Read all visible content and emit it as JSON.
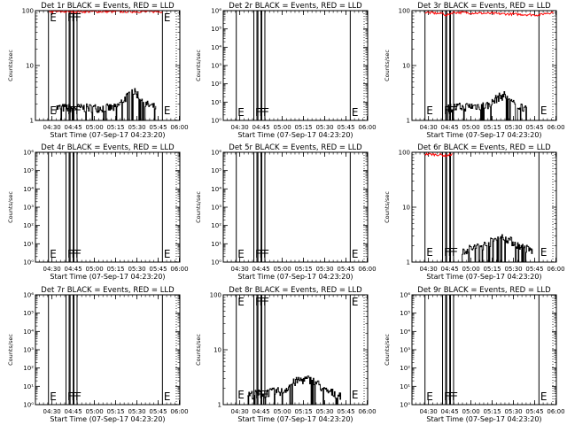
{
  "figure": {
    "xlabel": "Start Time (07-Sep-17 04:23:20)",
    "ylabel": "Counts/sec",
    "x_ticks": [
      "04:30",
      "04:45",
      "05:00",
      "05:15",
      "05:30",
      "05:45",
      "06:00"
    ],
    "colors": {
      "events": "#000000",
      "lld": "#ff0000"
    }
  },
  "chart_data": [
    {
      "type": "line",
      "title": "Det 1r BLACK = Events, RED = LLD",
      "xlabel": "Start Time (07-Sep-17 04:23:20)",
      "ylabel": "Counts/sec",
      "y_scale": "log",
      "ylim": [
        1,
        100
      ],
      "y_ticks": [
        {
          "v": 1,
          "label": "1"
        },
        {
          "v": 10,
          "label": "10"
        },
        {
          "v": 100,
          "label": "100"
        }
      ],
      "markers": [
        {
          "t": 4.2,
          "label": "E"
        },
        {
          "t": 16.6,
          "label": "F"
        },
        {
          "t": 19.5,
          "label": "F"
        },
        {
          "t": 22.2,
          "label": "F"
        },
        {
          "t": 84.7,
          "label": "E"
        }
      ],
      "events_profile": [
        [
          9,
          1.7
        ],
        [
          52,
          1.7
        ],
        [
          55,
          2.1
        ],
        [
          60,
          2.8
        ],
        [
          63,
          3.5
        ],
        [
          67,
          3.0
        ],
        [
          72,
          2.0
        ],
        [
          80,
          1.7
        ]
      ],
      "lld_profile": [
        [
          4.2,
          98
        ],
        [
          84.7,
          98
        ]
      ]
    },
    {
      "type": "line",
      "title": "Det 2r BLACK = Events, RED = LLD",
      "xlabel": "Start Time (07-Sep-17 04:23:20)",
      "ylabel": "Counts/sec",
      "y_scale": "log",
      "ylim": [
        1,
        1000000
      ],
      "y_ticks": [
        {
          "v": 1,
          "label": "10⁰"
        },
        {
          "v": 10,
          "label": "10¹"
        },
        {
          "v": 100,
          "label": "10²"
        },
        {
          "v": 1000,
          "label": "10³"
        },
        {
          "v": 10000,
          "label": "10⁴"
        },
        {
          "v": 100000,
          "label": "10⁵"
        },
        {
          "v": 1000000,
          "label": "10⁶"
        }
      ],
      "markers": [
        {
          "t": 4.2,
          "label": "E"
        },
        {
          "t": 16.6,
          "label": "F"
        },
        {
          "t": 19.5,
          "label": "F"
        },
        {
          "t": 22.2,
          "label": "F"
        },
        {
          "t": 84.7,
          "label": "E"
        }
      ],
      "events_profile": [],
      "lld_profile": []
    },
    {
      "type": "line",
      "title": "Det 3r BLACK = Events, RED = LLD",
      "xlabel": "Start Time (07-Sep-17 04:23:20)",
      "ylabel": "Counts/sec",
      "y_scale": "log",
      "ylim": [
        1,
        100
      ],
      "y_ticks": [
        {
          "v": 1,
          "label": "1"
        },
        {
          "v": 10,
          "label": "10"
        },
        {
          "v": 100,
          "label": "100"
        }
      ],
      "markers": [
        {
          "t": 4.2,
          "label": "E"
        },
        {
          "t": 16.6,
          "label": "F"
        },
        {
          "t": 19.5,
          "label": "F"
        },
        {
          "t": 22.2,
          "label": "F"
        },
        {
          "t": 84.7,
          "label": "E"
        }
      ],
      "events_profile": [
        [
          19,
          1.7
        ],
        [
          50,
          1.9
        ],
        [
          55,
          2.6
        ],
        [
          60,
          2.9
        ],
        [
          64,
          2.5
        ],
        [
          67,
          1.9
        ],
        [
          76,
          1.7
        ]
      ],
      "lld_profile": [
        [
          4.2,
          95
        ],
        [
          15,
          90
        ],
        [
          17,
          92
        ],
        [
          19,
          82
        ],
        [
          24,
          95
        ],
        [
          84.7,
          85
        ],
        [
          90,
          92
        ],
        [
          95,
          95
        ]
      ]
    },
    {
      "type": "line",
      "title": "Det 4r BLACK = Events, RED = LLD",
      "xlabel": "Start Time (07-Sep-17 04:23:20)",
      "ylabel": "Counts/sec",
      "y_scale": "log",
      "ylim": [
        1,
        1000000
      ],
      "y_ticks": [
        {
          "v": 1,
          "label": "10⁰"
        },
        {
          "v": 10,
          "label": "10¹"
        },
        {
          "v": 100,
          "label": "10²"
        },
        {
          "v": 1000,
          "label": "10³"
        },
        {
          "v": 10000,
          "label": "10⁴"
        },
        {
          "v": 100000,
          "label": "10⁵"
        },
        {
          "v": 1000000,
          "label": "10⁶"
        }
      ],
      "markers": [
        {
          "t": 4.2,
          "label": "E"
        },
        {
          "t": 16.6,
          "label": "F"
        },
        {
          "t": 19.5,
          "label": "F"
        },
        {
          "t": 22.2,
          "label": "F"
        },
        {
          "t": 84.7,
          "label": "E"
        }
      ],
      "events_profile": [],
      "lld_profile": []
    },
    {
      "type": "line",
      "title": "Det 5r BLACK = Events, RED = LLD",
      "xlabel": "Start Time (07-Sep-17 04:23:20)",
      "ylabel": "Counts/sec",
      "y_scale": "log",
      "ylim": [
        1,
        1000000
      ],
      "y_ticks": [
        {
          "v": 1,
          "label": "10⁰"
        },
        {
          "v": 10,
          "label": "10¹"
        },
        {
          "v": 100,
          "label": "10²"
        },
        {
          "v": 1000,
          "label": "10³"
        },
        {
          "v": 10000,
          "label": "10⁴"
        },
        {
          "v": 100000,
          "label": "10⁵"
        },
        {
          "v": 1000000,
          "label": "10⁶"
        }
      ],
      "markers": [
        {
          "t": 4.2,
          "label": "E"
        },
        {
          "t": 16.6,
          "label": "F"
        },
        {
          "t": 19.5,
          "label": "F"
        },
        {
          "t": 22.2,
          "label": "F"
        },
        {
          "t": 84.7,
          "label": "E"
        }
      ],
      "events_profile": [],
      "lld_profile": []
    },
    {
      "type": "line",
      "title": "Det 6r BLACK = Events, RED = LLD",
      "xlabel": "Start Time (07-Sep-17 04:23:20)",
      "ylabel": "Counts/sec",
      "y_scale": "log",
      "ylim": [
        1,
        100
      ],
      "y_ticks": [
        {
          "v": 1,
          "label": "1"
        },
        {
          "v": 10,
          "label": "10"
        },
        {
          "v": 100,
          "label": "100"
        }
      ],
      "markers": [
        {
          "t": 4.2,
          "label": "E"
        },
        {
          "t": 16.6,
          "label": "F"
        },
        {
          "t": 19.5,
          "label": "F"
        },
        {
          "t": 22.2,
          "label": "F"
        },
        {
          "t": 84.7,
          "label": "E"
        }
      ],
      "events_profile": [
        [
          30,
          1.6
        ],
        [
          48,
          2.1
        ],
        [
          53,
          2.6
        ],
        [
          60,
          2.9
        ],
        [
          65,
          2.4
        ],
        [
          72,
          1.9
        ],
        [
          80,
          1.6
        ]
      ],
      "lld_profile": [
        [
          4.2,
          95
        ],
        [
          15,
          92
        ],
        [
          19,
          88
        ],
        [
          24,
          95
        ]
      ]
    },
    {
      "type": "line",
      "title": "Det 7r BLACK = Events, RED = LLD",
      "xlabel": "Start Time (07-Sep-17 04:23:20)",
      "ylabel": "Counts/sec",
      "y_scale": "log",
      "ylim": [
        1,
        1000000
      ],
      "y_ticks": [
        {
          "v": 1,
          "label": "10⁰"
        },
        {
          "v": 10,
          "label": "10¹"
        },
        {
          "v": 100,
          "label": "10²"
        },
        {
          "v": 1000,
          "label": "10³"
        },
        {
          "v": 10000,
          "label": "10⁴"
        },
        {
          "v": 100000,
          "label": "10⁵"
        },
        {
          "v": 1000000,
          "label": "10⁶"
        }
      ],
      "markers": [
        {
          "t": 4.2,
          "label": "E"
        },
        {
          "t": 16.6,
          "label": "F"
        },
        {
          "t": 19.5,
          "label": "F"
        },
        {
          "t": 22.2,
          "label": "F"
        },
        {
          "t": 84.7,
          "label": "E"
        }
      ],
      "events_profile": [],
      "lld_profile": []
    },
    {
      "type": "line",
      "title": "Det 8r BLACK = Events, RED = LLD",
      "xlabel": "Start Time (07-Sep-17 04:23:20)",
      "ylabel": "Counts/sec",
      "y_scale": "log",
      "ylim": [
        1,
        100
      ],
      "y_ticks": [
        {
          "v": 1,
          "label": "1"
        },
        {
          "v": 10,
          "label": "10"
        },
        {
          "v": 100,
          "label": "100"
        }
      ],
      "markers": [
        {
          "t": 4.2,
          "label": "E"
        },
        {
          "t": 16.6,
          "label": "F"
        },
        {
          "t": 19.5,
          "label": "F"
        },
        {
          "t": 22.2,
          "label": "F"
        },
        {
          "t": 84.7,
          "label": "E"
        }
      ],
      "events_profile": [
        [
          12,
          1.5
        ],
        [
          38,
          1.8
        ],
        [
          42,
          2.3
        ],
        [
          48,
          2.8
        ],
        [
          55,
          2.9
        ],
        [
          61,
          2.5
        ],
        [
          66,
          1.8
        ],
        [
          78,
          1.5
        ]
      ],
      "lld_profile": []
    },
    {
      "type": "line",
      "title": "Det 9r BLACK = Events, RED = LLD",
      "xlabel": "Start Time (07-Sep-17 04:23:20)",
      "ylabel": "Counts/sec",
      "y_scale": "log",
      "ylim": [
        1,
        1000000
      ],
      "y_ticks": [
        {
          "v": 1,
          "label": "10⁰"
        },
        {
          "v": 10,
          "label": "10¹"
        },
        {
          "v": 100,
          "label": "10²"
        },
        {
          "v": 1000,
          "label": "10³"
        },
        {
          "v": 10000,
          "label": "10⁴"
        },
        {
          "v": 100000,
          "label": "10⁵"
        },
        {
          "v": 1000000,
          "label": "10⁶"
        }
      ],
      "markers": [
        {
          "t": 4.2,
          "label": "E"
        },
        {
          "t": 16.6,
          "label": "F"
        },
        {
          "t": 19.5,
          "label": "F"
        },
        {
          "t": 22.2,
          "label": "F"
        },
        {
          "t": 84.7,
          "label": "E"
        }
      ],
      "events_profile": [],
      "lld_profile": []
    }
  ]
}
